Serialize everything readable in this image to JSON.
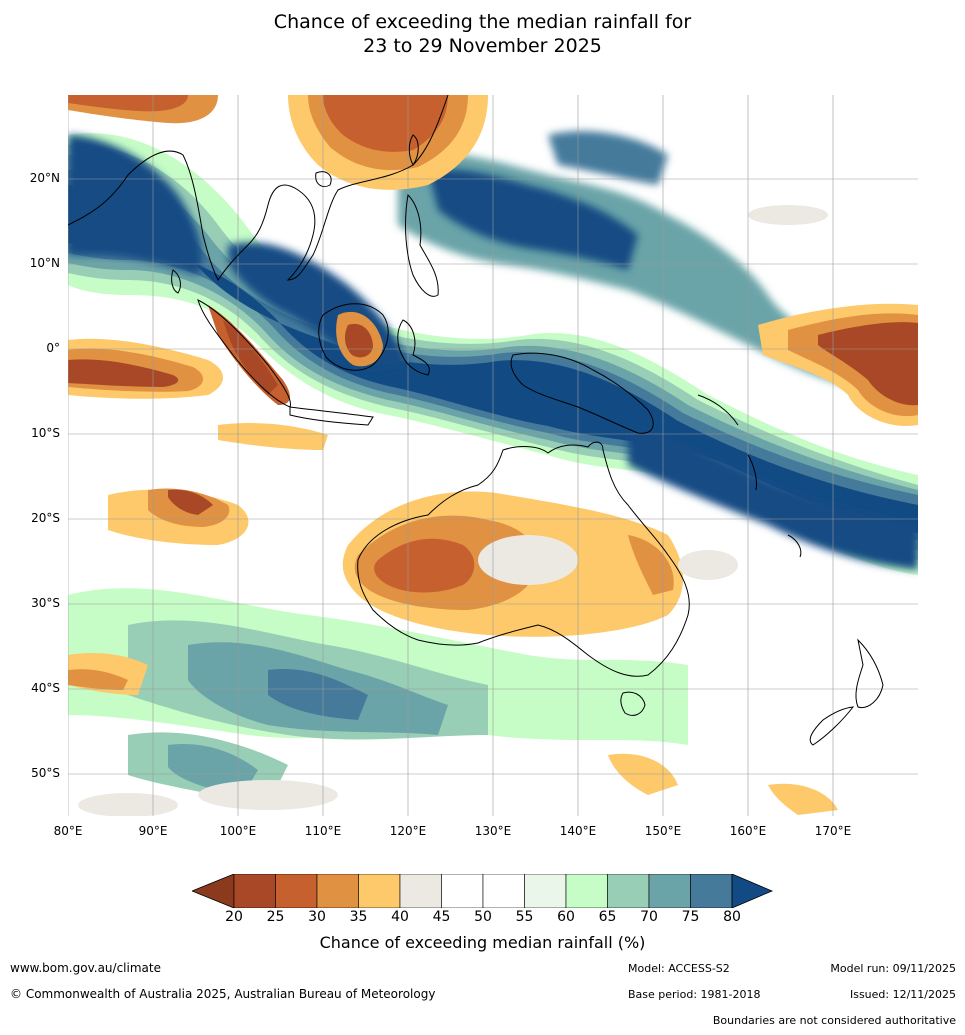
{
  "title": {
    "line1": "Chance of exceeding the median rainfall for",
    "line2": "23 to 29 November 2025"
  },
  "axes": {
    "lat_labels": [
      "20°N",
      "10°N",
      "0°",
      "10°S",
      "20°S",
      "30°S",
      "40°S",
      "50°S"
    ],
    "lon_labels": [
      "80°E",
      "90°E",
      "100°E",
      "110°E",
      "120°E",
      "130°E",
      "140°E",
      "150°E",
      "160°E",
      "170°E"
    ]
  },
  "colorbar": {
    "ticks": [
      "20",
      "25",
      "30",
      "35",
      "40",
      "45",
      "50",
      "55",
      "60",
      "65",
      "70",
      "75",
      "80"
    ],
    "low_color": "#8b3a1e",
    "colors": [
      "#a94826",
      "#c6612f",
      "#e09142",
      "#fdc96a",
      "#ece9e3",
      "#ffffff",
      "#ffffff",
      "#eaf6ea",
      "#c6fcc6",
      "#98cdb6",
      "#6ba4a8",
      "#457a9b"
    ],
    "high_color": "#124b84",
    "label": "Chance of exceeding median rainfall (%)"
  },
  "footer": {
    "url": "www.bom.gov.au/climate",
    "copyright": "© Commonwealth of Australia 2025, Australian Bureau of Meteorology",
    "model": "Model: ACCESS-S2",
    "base_period": "Base period: 1981-2018",
    "model_run": "Model run: 09/11/2025",
    "issued": "Issued: 12/11/2025",
    "disclaimer": "Boundaries are not considered authoritative"
  }
}
